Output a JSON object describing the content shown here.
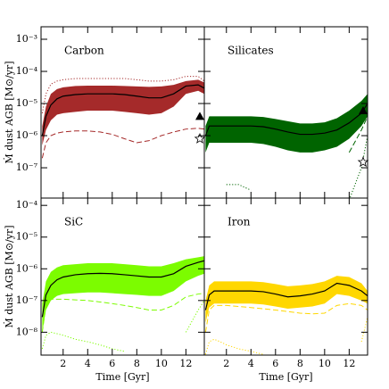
{
  "chart_data": [
    {
      "type": "line",
      "title": "Carbon",
      "title_color": "#a52a2a",
      "y_label": "Ṁ dust AGB [M⊙/yr]",
      "xlim": [
        0.2,
        13.5
      ],
      "xticks": [
        2,
        4,
        6,
        8,
        10,
        12
      ],
      "ylim": [
        1.14e-08,
        0.00245
      ],
      "log_y": true,
      "yticks": [
        {
          "value": 0.001,
          "label": "10⁻³"
        },
        {
          "value": 0.0001,
          "label": "10⁻⁴"
        },
        {
          "value": 1e-05,
          "label": "10⁻⁵"
        },
        {
          "value": 1e-06,
          "label": "10⁻⁶"
        },
        {
          "value": 1e-07,
          "label": "10⁻⁷"
        }
      ],
      "x": [
        0.3,
        0.6,
        1,
        1.5,
        2,
        3,
        4,
        5,
        6,
        7,
        8,
        9,
        10,
        11,
        12,
        13,
        13.5
      ],
      "series": [
        {
          "style": "band",
          "color": "#a52a2a",
          "lower": [
            5e-07,
            1.5e-06,
            3e-06,
            4.5e-06,
            5e-06,
            5.5e-06,
            6e-06,
            6e-06,
            6e-06,
            5.5e-06,
            5e-06,
            4.5e-06,
            5e-06,
            8e-06,
            2e-05,
            2.5e-05,
            2e-05
          ],
          "upper": [
            2e-06,
            8e-06,
            2e-05,
            2.8e-05,
            3.2e-05,
            3.5e-05,
            3.6e-05,
            3.6e-05,
            3.6e-05,
            3.5e-05,
            3.4e-05,
            3.3e-05,
            3.4e-05,
            3.8e-05,
            5e-05,
            5.5e-05,
            4.5e-05
          ]
        },
        {
          "style": "solid",
          "color": "#000000",
          "values": [
            1e-06,
            4e-06,
            9e-06,
            1.4e-05,
            1.7e-05,
            1.9e-05,
            2e-05,
            2e-05,
            2e-05,
            1.9e-05,
            1.7e-05,
            1.5e-05,
            1.5e-05,
            2e-05,
            3.5e-05,
            3.8e-05,
            3e-05
          ]
        },
        {
          "style": "dashed",
          "color": "#a52a2a",
          "values": [
            2e-07,
            6e-07,
            1e-06,
            1.2e-06,
            1.3e-06,
            1.4e-06,
            1.4e-06,
            1.3e-06,
            1.1e-06,
            8e-07,
            6e-07,
            7e-07,
            1e-06,
            1.3e-06,
            1.6e-06,
            1.7e-06,
            1.6e-06
          ]
        },
        {
          "style": "dotted",
          "color": "#a52a2a",
          "values": [
            5e-06,
            2e-05,
            4e-05,
            5e-05,
            5.5e-05,
            6e-05,
            6e-05,
            6e-05,
            6e-05,
            6e-05,
            5.5e-05,
            5e-05,
            5e-05,
            5.5e-05,
            7e-05,
            7e-05,
            5e-05
          ]
        }
      ],
      "markers": {
        "x": [
          13.7,
          13.7
        ],
        "values": [
          4e-06,
          8e-07
        ],
        "symbols": [
          "triangle",
          "star"
        ]
      }
    },
    {
      "type": "line",
      "title": "Silicates",
      "title_color": "#006400",
      "xlim": [
        0.2,
        13.5
      ],
      "xticks": [
        2,
        4,
        6,
        8,
        10,
        12
      ],
      "ylim": [
        1.14e-08,
        0.00245
      ],
      "log_y": true,
      "yticks": [
        0.001,
        0.0001,
        1e-05,
        1e-06,
        1e-07
      ],
      "x": [
        0.3,
        0.6,
        1,
        1.5,
        2,
        3,
        4,
        5,
        6,
        7,
        8,
        9,
        10,
        11,
        12,
        13,
        13.5
      ],
      "series": [
        {
          "style": "band",
          "color": "#006400",
          "lower": [
            3e-07,
            6e-07,
            6e-07,
            6e-07,
            6e-07,
            6e-07,
            6e-07,
            5.5e-07,
            4.5e-07,
            3.5e-07,
            3e-07,
            3e-07,
            3.5e-07,
            4.5e-07,
            8e-07,
            2e-06,
            4e-06
          ],
          "upper": [
            2e-06,
            4e-06,
            4e-06,
            4e-06,
            4e-06,
            4e-06,
            4e-06,
            3.8e-06,
            3.3e-06,
            2.8e-06,
            2.4e-06,
            2.4e-06,
            2.6e-06,
            3.5e-06,
            6e-06,
            1.2e-05,
            2e-05
          ]
        },
        {
          "style": "solid",
          "color": "#000000",
          "values": [
            1e-06,
            2e-06,
            2e-06,
            2e-06,
            2e-06,
            2e-06,
            2e-06,
            1.9e-06,
            1.6e-06,
            1.3e-06,
            1.1e-06,
            1.1e-06,
            1.2e-06,
            1.5e-06,
            2.5e-06,
            5e-06,
            1e-05
          ]
        },
        {
          "style": "dashed",
          "color": "#006400",
          "values": [
            null,
            null,
            null,
            null,
            null,
            null,
            null,
            null,
            null,
            null,
            null,
            null,
            null,
            null,
            3e-07,
            1.5e-06,
            4e-06
          ]
        },
        {
          "style": "dotted",
          "color": "#006400",
          "values": [
            null,
            null,
            null,
            null,
            3e-08,
            3e-08,
            2e-08,
            null,
            null,
            null,
            null,
            null,
            null,
            null,
            1e-08,
            1e-07,
            1e-06
          ]
        }
      ],
      "markers": {
        "x": [
          13.7,
          13.7
        ],
        "values": [
          6e-06,
          1.5e-07
        ],
        "symbols": [
          "triangle",
          "star"
        ]
      }
    },
    {
      "type": "line",
      "title": "SiC",
      "title_color": "#7cfc00",
      "y_label": "Ṁ dust AGB [M⊙/yr]",
      "x_label": "Time [Gyr]",
      "xlim": [
        0.2,
        13.5
      ],
      "xticks": [
        2,
        4,
        6,
        8,
        10,
        12
      ],
      "ylim": [
        1.9e-09,
        0.00017
      ],
      "log_y": true,
      "yticks": [
        {
          "value": 0.0001,
          "label": "10⁻⁴"
        },
        {
          "value": 1e-05,
          "label": "10⁻⁵"
        },
        {
          "value": 1e-06,
          "label": "10⁻⁶"
        },
        {
          "value": 1e-07,
          "label": "10⁻⁷"
        },
        {
          "value": 1e-08,
          "label": "10⁻⁸"
        }
      ],
      "x": [
        0.3,
        0.6,
        1,
        1.5,
        2,
        3,
        4,
        5,
        6,
        7,
        8,
        9,
        10,
        11,
        12,
        13,
        13.5
      ],
      "series": [
        {
          "style": "band",
          "color": "#7cfc00",
          "lower": [
            1e-08,
            5e-08,
            1e-07,
            1.4e-07,
            1.6e-07,
            1.7e-07,
            1.8e-07,
            1.8e-07,
            1.7e-07,
            1.6e-07,
            1.5e-07,
            1.4e-07,
            1.4e-07,
            2e-07,
            4e-07,
            6e-07,
            7e-07
          ],
          "upper": [
            8e-08,
            4e-07,
            8e-07,
            1.1e-06,
            1.3e-06,
            1.4e-06,
            1.5e-06,
            1.5e-06,
            1.5e-06,
            1.4e-06,
            1.3e-06,
            1.2e-06,
            1.2e-06,
            1.5e-06,
            2e-06,
            2.3e-06,
            2.5e-06
          ]
        },
        {
          "style": "solid",
          "color": "#000000",
          "values": [
            3e-08,
            1.5e-07,
            3e-07,
            4.5e-07,
            5.5e-07,
            6.5e-07,
            7e-07,
            7.2e-07,
            7e-07,
            6.5e-07,
            6e-07,
            5.5e-07,
            5.5e-07,
            7e-07,
            1.2e-06,
            1.6e-06,
            1.8e-06
          ]
        },
        {
          "style": "dashed",
          "color": "#7cfc00",
          "values": [
            1e-08,
            7e-08,
            1.1e-07,
            1.1e-07,
            1.1e-07,
            1.05e-07,
            1e-07,
            9e-08,
            8e-08,
            7e-08,
            6e-08,
            5e-08,
            5e-08,
            7e-08,
            1.3e-07,
            1.6e-07,
            1.7e-07
          ]
        },
        {
          "style": "dotted",
          "color": "#7cfc00",
          "values": [
            3e-09,
            8e-09,
            1e-08,
            9e-09,
            8e-09,
            6e-09,
            5e-09,
            4e-09,
            3e-09,
            2.5e-09,
            null,
            null,
            null,
            null,
            1e-08,
            5e-08,
            1e-07
          ]
        }
      ]
    },
    {
      "type": "line",
      "title": "Iron",
      "title_color": "#ffd700",
      "x_label": "Time [Gyr]",
      "xlim": [
        0.2,
        13.5
      ],
      "xticks": [
        2,
        4,
        6,
        8,
        10,
        12
      ],
      "ylim": [
        1.9e-09,
        0.00017
      ],
      "log_y": true,
      "yticks": [
        0.0001,
        1e-05,
        1e-06,
        1e-07,
        1e-08
      ],
      "x": [
        0.3,
        0.6,
        1,
        1.5,
        2,
        3,
        4,
        5,
        6,
        7,
        8,
        9,
        10,
        11,
        12,
        13,
        13.5
      ],
      "series": [
        {
          "style": "band",
          "color": "#ffd700",
          "lower": [
            2e-08,
            6e-08,
            8e-08,
            8e-08,
            8e-08,
            8e-08,
            8e-08,
            7.5e-08,
            6.5e-08,
            5.5e-08,
            6e-08,
            6.5e-08,
            8e-08,
            1.6e-07,
            1.4e-07,
            1e-07,
            8e-08
          ],
          "upper": [
            1e-07,
            3e-07,
            4e-07,
            4e-07,
            4e-07,
            4e-07,
            4e-07,
            3.8e-07,
            3.3e-07,
            2.8e-07,
            3e-07,
            3.3e-07,
            4e-07,
            6e-07,
            5.5e-07,
            3.5e-07,
            2e-07
          ]
        },
        {
          "style": "solid",
          "color": "#000000",
          "values": [
            5e-08,
            1.5e-07,
            2e-07,
            2e-07,
            2e-07,
            2e-07,
            2e-07,
            1.9e-07,
            1.6e-07,
            1.3e-07,
            1.4e-07,
            1.6e-07,
            2e-07,
            3.5e-07,
            3e-07,
            2e-07,
            1.4e-07
          ]
        },
        {
          "style": "dashed",
          "color": "#ffd700",
          "values": [
            1e-08,
            5e-08,
            7e-08,
            7e-08,
            7e-08,
            6.5e-08,
            6e-08,
            5.5e-08,
            5e-08,
            4.5e-08,
            4e-08,
            3.8e-08,
            4e-08,
            7e-08,
            8e-08,
            7e-08,
            5e-08
          ]
        },
        {
          "style": "dotted",
          "color": "#ffd700",
          "values": [
            2e-09,
            5e-09,
            6e-09,
            5e-09,
            4e-09,
            3e-09,
            2.5e-09,
            2e-09,
            null,
            null,
            null,
            null,
            null,
            null,
            null,
            5e-09,
            3e-08
          ]
        }
      ]
    }
  ]
}
